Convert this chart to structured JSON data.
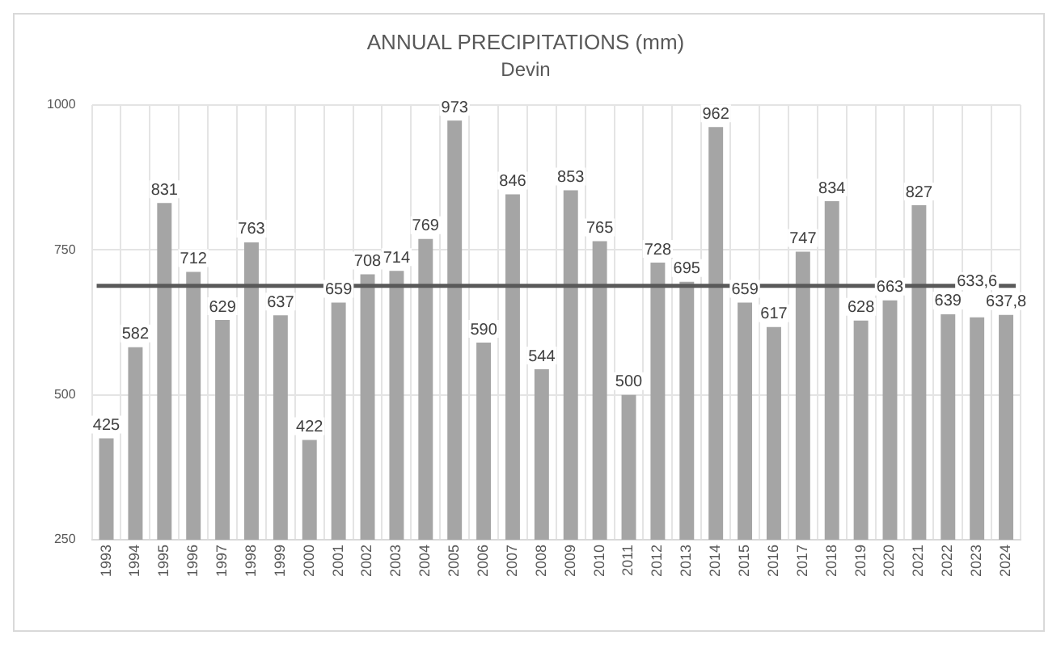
{
  "chart_data": {
    "type": "bar",
    "title": "ANNUAL PRECIPITATIONS (mm)",
    "subtitle": "Devin",
    "categories": [
      "1993",
      "1994",
      "1995",
      "1996",
      "1997",
      "1998",
      "1999",
      "2000",
      "2001",
      "2002",
      "2003",
      "2004",
      "2005",
      "2006",
      "2007",
      "2008",
      "2009",
      "2010",
      "2011",
      "2012",
      "2013",
      "2014",
      "2015",
      "2016",
      "2017",
      "2018",
      "2019",
      "2020",
      "2021",
      "2022",
      "2023",
      "2024"
    ],
    "values": [
      425,
      582,
      831,
      712,
      629,
      763,
      637,
      422,
      659,
      708,
      714,
      769,
      973,
      590,
      846,
      544,
      853,
      765,
      500,
      728,
      695,
      962,
      659,
      617,
      747,
      834,
      628,
      663,
      827,
      639,
      633.6,
      637.8
    ],
    "value_labels": [
      "425",
      "582",
      "831",
      "712",
      "629",
      "763",
      "637",
      "422",
      "659",
      "708",
      "714",
      "769",
      "973",
      "590",
      "846",
      "544",
      "853",
      "765",
      "500",
      "728",
      "695",
      "962",
      "659",
      "617",
      "747",
      "834",
      "628",
      "663",
      "827",
      "639",
      "633,6",
      "637,8"
    ],
    "color": "#a5a5a5",
    "ylim": [
      250,
      1000
    ],
    "yticks": [
      250,
      500,
      750,
      1000
    ],
    "grid": true,
    "ref_lines": [
      {
        "axis": "y",
        "value": 688,
        "color": "#595959"
      }
    ]
  }
}
